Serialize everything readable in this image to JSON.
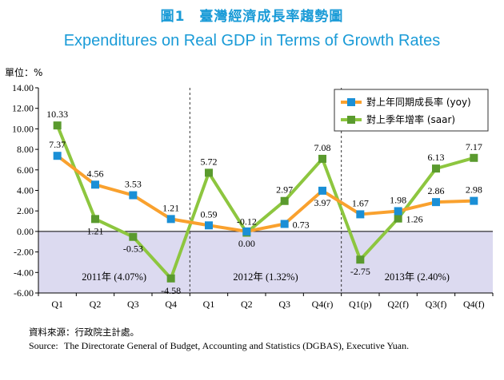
{
  "header": {
    "title_zh": "圖1　臺灣經濟成長率趨勢圖",
    "title_en": "Expenditures on Real GDP in Terms of Growth Rates"
  },
  "unit_label": "單位：%",
  "colors": {
    "yoy": "#f9a12e",
    "yoy_marker": "#1a8fd6",
    "saar": "#8dc63f",
    "saar_marker": "#5a9a2e",
    "negative_bg": "#dcdaf0",
    "title": "#1a9bd7"
  },
  "chart_data": {
    "type": "line",
    "categories": [
      "Q1",
      "Q2",
      "Q3",
      "Q4",
      "Q1",
      "Q2",
      "Q3",
      "Q4(r)",
      "Q1(p)",
      "Q2(f)",
      "Q3(f)",
      "Q4(f)"
    ],
    "ylim": [
      -6,
      14
    ],
    "yticks": [
      "14.00",
      "12.00",
      "10.00",
      "8.00",
      "6.00",
      "4.00",
      "2.00",
      "0.00",
      "-2.00",
      "-4.00",
      "-6.00"
    ],
    "series": [
      {
        "name": "對上年同期成長率 (yoy)",
        "values": [
          7.37,
          4.56,
          3.53,
          1.21,
          0.59,
          0.0,
          0.73,
          3.97,
          1.67,
          1.98,
          2.86,
          2.98
        ],
        "labels": [
          "7.37",
          "4.56",
          "3.53",
          "1.21",
          "0.59",
          "0.00",
          "0.73",
          "3.97",
          "1.67",
          "1.98",
          "2.86",
          "2.98"
        ]
      },
      {
        "name": "對上季年增率 (saar)",
        "values": [
          10.33,
          1.21,
          -0.53,
          -4.58,
          5.72,
          -0.12,
          2.97,
          7.08,
          -2.75,
          1.26,
          6.13,
          7.17
        ],
        "labels": [
          "10.33",
          "1.21",
          "-0.53",
          "-4.58",
          "5.72",
          "-0.12",
          "2.97",
          "7.08",
          "-2.75",
          "1.26",
          "6.13",
          "7.17"
        ]
      }
    ],
    "period_labels": [
      "2011年 (4.07%)",
      "2012年 (1.32%)",
      "2013年 (2.40%)"
    ],
    "legend_position": "top-right",
    "grid": false
  },
  "source": {
    "zh": "資料來源：行政院主計處。",
    "en_label": "Source:",
    "en_text": "The Directorate General of Budget, Accounting and Statistics (DGBAS), Executive Yuan."
  }
}
